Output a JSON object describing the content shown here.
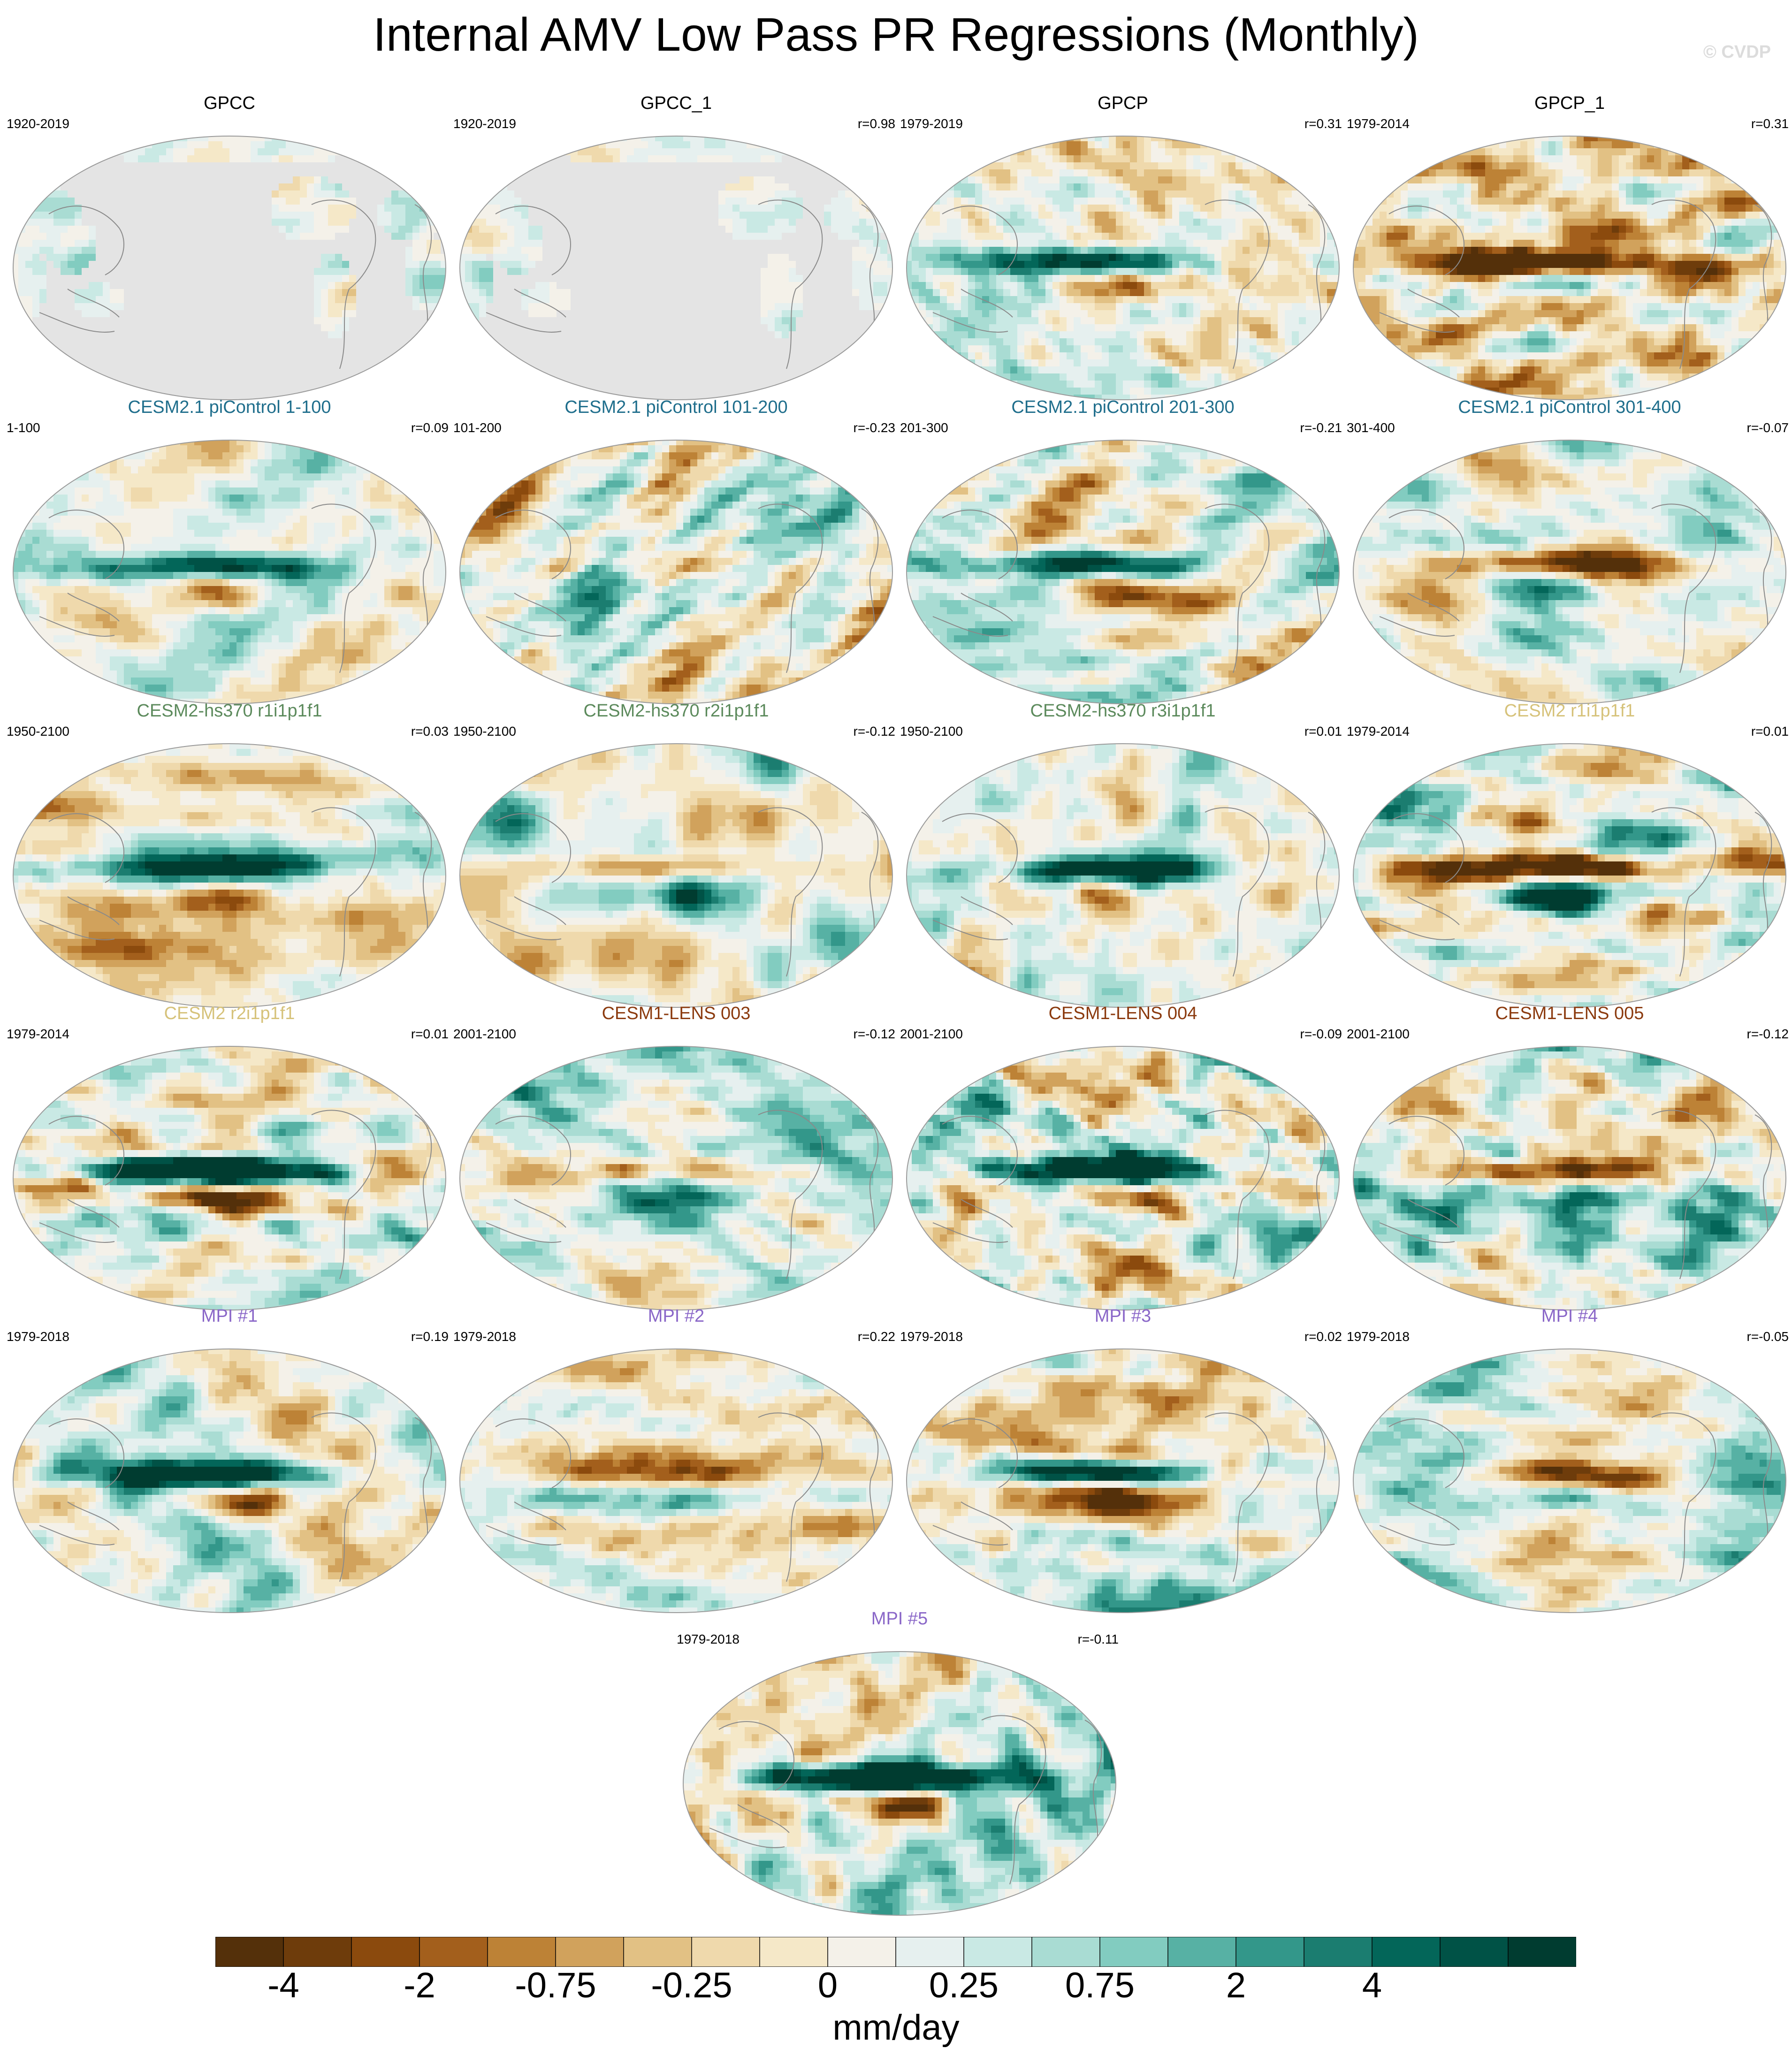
{
  "title": "Internal AMV Low Pass PR Regressions (Monthly)",
  "watermark": "© CVDP",
  "colors": {
    "land_mask": "#e4e4e4",
    "coast": "#8a8a8a",
    "title_obs": "#000000",
    "title_cesm21": "#1f6e8c",
    "title_hs370": "#5c8a5c",
    "title_cesm2": "#d6c27a",
    "title_lens": "#8b3a0e",
    "title_mpi": "#8a67c8"
  },
  "panels": [
    {
      "title": "GPCC",
      "title_color": "#000000",
      "period": "1920-2019",
      "r": "",
      "style": "land",
      "seed": 11,
      "amp": 0.55
    },
    {
      "title": "GPCC_1",
      "title_color": "#000000",
      "period": "1920-2019",
      "r": "r=0.98",
      "style": "land",
      "seed": 12,
      "amp": 0.55
    },
    {
      "title": "GPCP",
      "title_color": "#000000",
      "period": "1979-2019",
      "r": "r=0.31",
      "style": "global",
      "seed": 13,
      "amp": 0.8
    },
    {
      "title": "GPCP_1",
      "title_color": "#000000",
      "period": "1979-2014",
      "r": "r=0.31",
      "style": "global",
      "seed": 14,
      "amp": 0.8
    },
    {
      "title": "CESM2.1 piControl 1-100",
      "title_color": "#1f6e8c",
      "period": "1-100",
      "r": "r=0.09",
      "style": "global",
      "seed": 21,
      "amp": 0.6
    },
    {
      "title": "CESM2.1 piControl 101-200",
      "title_color": "#1f6e8c",
      "period": "101-200",
      "r": "r=-0.23",
      "style": "global",
      "seed": 22,
      "amp": 0.8
    },
    {
      "title": "CESM2.1 piControl 201-300",
      "title_color": "#1f6e8c",
      "period": "201-300",
      "r": "r=-0.21",
      "style": "global",
      "seed": 23,
      "amp": 0.75
    },
    {
      "title": "CESM2.1 piControl 301-400",
      "title_color": "#1f6e8c",
      "period": "301-400",
      "r": "r=-0.07",
      "style": "global",
      "seed": 24,
      "amp": 0.55
    },
    {
      "title": "CESM2-hs370 r1i1p1f1",
      "title_color": "#5c8a5c",
      "period": "1950-2100",
      "r": "r=0.03",
      "style": "global",
      "seed": 31,
      "amp": 0.65
    },
    {
      "title": "CESM2-hs370 r2i1p1f1",
      "title_color": "#5c8a5c",
      "period": "1950-2100",
      "r": "r=-0.12",
      "style": "global",
      "seed": 32,
      "amp": 0.7
    },
    {
      "title": "CESM2-hs370 r3i1p1f1",
      "title_color": "#5c8a5c",
      "period": "1950-2100",
      "r": "r=0.01",
      "style": "global",
      "seed": 33,
      "amp": 0.7
    },
    {
      "title": "CESM2 r1i1p1f1",
      "title_color": "#d6c27a",
      "period": "1979-2014",
      "r": "r=0.01",
      "style": "global",
      "seed": 34,
      "amp": 1.0
    },
    {
      "title": "CESM2 r2i1p1f1",
      "title_color": "#d6c27a",
      "period": "1979-2014",
      "r": "r=0.01",
      "style": "global",
      "seed": 41,
      "amp": 1.0
    },
    {
      "title": "CESM1-LENS 003",
      "title_color": "#8b3a0e",
      "period": "2001-2100",
      "r": "r=-0.12",
      "style": "global",
      "seed": 42,
      "amp": 0.8
    },
    {
      "title": "CESM1-LENS 004",
      "title_color": "#8b3a0e",
      "period": "2001-2100",
      "r": "r=-0.09",
      "style": "global",
      "seed": 43,
      "amp": 0.85
    },
    {
      "title": "CESM1-LENS 005",
      "title_color": "#8b3a0e",
      "period": "2001-2100",
      "r": "r=-0.12",
      "style": "global",
      "seed": 44,
      "amp": 0.85
    },
    {
      "title": "MPI #1",
      "title_color": "#8a67c8",
      "period": "1979-2018",
      "r": "r=0.19",
      "style": "global",
      "seed": 51,
      "amp": 0.65
    },
    {
      "title": "MPI #2",
      "title_color": "#8a67c8",
      "period": "1979-2018",
      "r": "r=0.22",
      "style": "global",
      "seed": 52,
      "amp": 0.6
    },
    {
      "title": "MPI #3",
      "title_color": "#8a67c8",
      "period": "1979-2018",
      "r": "r=0.02",
      "style": "global",
      "seed": 53,
      "amp": 0.85
    },
    {
      "title": "MPI #4",
      "title_color": "#8a67c8",
      "period": "1979-2018",
      "r": "r=-0.05",
      "style": "global",
      "seed": 54,
      "amp": 0.7
    },
    {
      "title": "MPI #5",
      "title_color": "#8a67c8",
      "period": "1979-2018",
      "r": "r=-0.11",
      "style": "global",
      "seed": 61,
      "amp": 0.8
    }
  ],
  "chart_data": {
    "type": "heatmap",
    "title": "Internal AMV Low Pass PR Regressions (Monthly)",
    "colorbar": {
      "units": "mm/day",
      "tick_labels": [
        "-4",
        "-2",
        "-0.75",
        "-0.25",
        "0",
        "0.25",
        "0.75",
        "2",
        "4"
      ],
      "tick_boundary_index": [
        1,
        3,
        5,
        7,
        9,
        11,
        13,
        15,
        17
      ],
      "n_bins": 20,
      "bin_colors": [
        "#54300a",
        "#6e3c0b",
        "#8b4a0d",
        "#a35f1c",
        "#bd8236",
        "#d1a25c",
        "#e2c184",
        "#efd9ac",
        "#f5e8c8",
        "#f4f1e9",
        "#e6f0ef",
        "#c9e9e4",
        "#a9dcd3",
        "#82ccc0",
        "#57b1a4",
        "#33978a",
        "#1b7d70",
        "#036659",
        "#005246",
        "#003c30"
      ]
    }
  }
}
